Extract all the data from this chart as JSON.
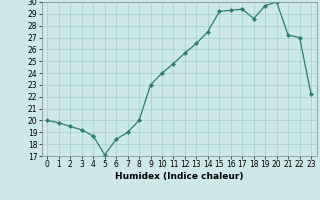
{
  "x": [
    0,
    1,
    2,
    3,
    4,
    5,
    6,
    7,
    8,
    9,
    10,
    11,
    12,
    13,
    14,
    15,
    16,
    17,
    18,
    19,
    20,
    21,
    22,
    23
  ],
  "y": [
    20.0,
    19.8,
    19.5,
    19.2,
    18.7,
    17.1,
    18.4,
    19.0,
    20.0,
    23.0,
    24.0,
    24.8,
    25.7,
    26.5,
    27.5,
    29.2,
    29.3,
    29.4,
    28.6,
    29.7,
    30.0,
    27.2,
    27.0,
    22.2
  ],
  "xlabel": "Humidex (Indice chaleur)",
  "xlim": [
    -0.5,
    23.5
  ],
  "ylim": [
    17,
    30
  ],
  "yticks": [
    17,
    18,
    19,
    20,
    21,
    22,
    23,
    24,
    25,
    26,
    27,
    28,
    29,
    30
  ],
  "xticks": [
    0,
    1,
    2,
    3,
    4,
    5,
    6,
    7,
    8,
    9,
    10,
    11,
    12,
    13,
    14,
    15,
    16,
    17,
    18,
    19,
    20,
    21,
    22,
    23
  ],
  "line_color": "#2e7d6e",
  "marker_color": "#2e7d6e",
  "bg_color": "#cce8e8",
  "grid_color": "#aacccc",
  "label_fontsize": 6.5,
  "tick_fontsize": 5.5
}
